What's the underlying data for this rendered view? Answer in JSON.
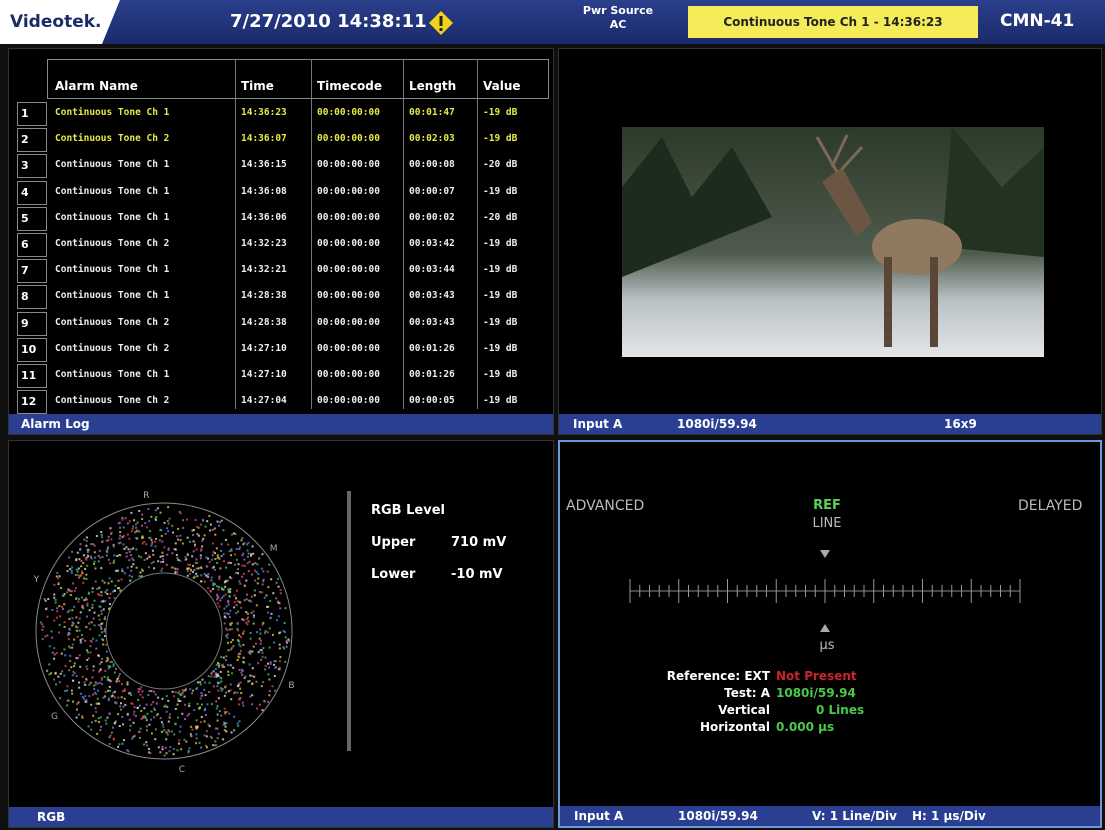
{
  "header": {
    "brand": "Videotek.",
    "datetime": "7/27/2010 14:38:11",
    "power_label": "Pwr Source",
    "power_value": "AC",
    "alert": "Continuous Tone Ch 1 - 14:36:23",
    "model": "CMN-41"
  },
  "alarm_log": {
    "columns": [
      "Alarm Name",
      "Time",
      "Timecode",
      "Length",
      "Value"
    ],
    "rows": [
      [
        "1",
        "Continuous Tone Ch 1",
        "14:36:23",
        "00:00:00:00",
        "00:01:47",
        "-19 dB"
      ],
      [
        "2",
        "Continuous Tone Ch 2",
        "14:36:07",
        "00:00:00:00",
        "00:02:03",
        "-19 dB"
      ],
      [
        "3",
        "Continuous Tone Ch 1",
        "14:36:15",
        "00:00:00:00",
        "00:00:08",
        "-20 dB"
      ],
      [
        "4",
        "Continuous Tone Ch 1",
        "14:36:08",
        "00:00:00:00",
        "00:00:07",
        "-19 dB"
      ],
      [
        "5",
        "Continuous Tone Ch 1",
        "14:36:06",
        "00:00:00:00",
        "00:00:02",
        "-20 dB"
      ],
      [
        "6",
        "Continuous Tone Ch 2",
        "14:32:23",
        "00:00:00:00",
        "00:03:42",
        "-19 dB"
      ],
      [
        "7",
        "Continuous Tone Ch 1",
        "14:32:21",
        "00:00:00:00",
        "00:03:44",
        "-19 dB"
      ],
      [
        "8",
        "Continuous Tone Ch 1",
        "14:28:38",
        "00:00:00:00",
        "00:03:43",
        "-19 dB"
      ],
      [
        "9",
        "Continuous Tone Ch 2",
        "14:28:38",
        "00:00:00:00",
        "00:03:43",
        "-19 dB"
      ],
      [
        "10",
        "Continuous Tone Ch 2",
        "14:27:10",
        "00:00:00:00",
        "00:01:26",
        "-19 dB"
      ],
      [
        "11",
        "Continuous Tone Ch 1",
        "14:27:10",
        "00:00:00:00",
        "00:01:26",
        "-19 dB"
      ],
      [
        "12",
        "Continuous Tone Ch 2",
        "14:27:04",
        "00:00:00:00",
        "00:00:05",
        "-19 dB"
      ]
    ],
    "footer": "Alarm Log"
  },
  "video": {
    "input": "Input A",
    "format": "1080i/59.94",
    "aspect": "16x9"
  },
  "rgb": {
    "footer": "RGB",
    "title": "RGB Level",
    "upper_label": "Upper",
    "upper_value": "710 mV",
    "lower_label": "Lower",
    "lower_value": "-10 mV",
    "markers": [
      "R",
      "M",
      "B",
      "C",
      "G",
      "Y"
    ]
  },
  "timing": {
    "advanced": "ADVANCED",
    "ref": "REF",
    "line": "LINE",
    "delayed": "DELAYED",
    "unit": "µs",
    "reference_label": "Reference: EXT",
    "reference_value": "Not Present",
    "test_label": "Test: A",
    "test_value": "1080i/59.94",
    "vertical_label": "Vertical",
    "vertical_value": "0 Lines",
    "horizontal_label": "Horizontal",
    "horizontal_value": "0.000 µs",
    "input": "Input A",
    "format": "1080i/59.94",
    "v_scale": "V: 1 Line/Div",
    "h_scale": "H: 1 µs/Div"
  }
}
